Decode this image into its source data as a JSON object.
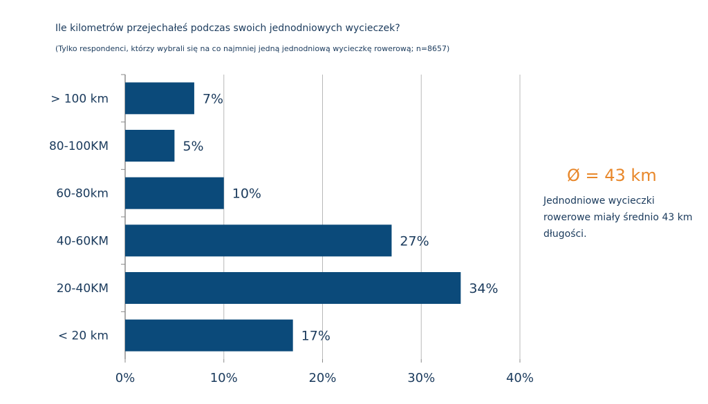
{
  "chart_data": {
    "type": "bar",
    "orientation": "horizontal",
    "title": "Ile kilometrów przejechałeś podczas swoich jednodniowych wycieczek?",
    "subtitle": "(Tylko respondenci, którzy wybrali się na co najmniej jedną jednodniową wycieczkę rowerową; n=8657)",
    "categories": [
      "> 100 km",
      "80-100KM",
      "60-80km",
      "40-60KM",
      "20-40KM",
      "< 20 km"
    ],
    "values": [
      7,
      5,
      10,
      27,
      34,
      17
    ],
    "value_labels": [
      "7%",
      "5%",
      "10%",
      "27%",
      "34%",
      "17%"
    ],
    "x_ticks": [
      "0%",
      "10%",
      "20%",
      "30%",
      "40%"
    ],
    "xlim": [
      0,
      40
    ],
    "grid": true,
    "bar_color": "#0b4a7a"
  },
  "summary": {
    "average": "Ø = 43 km",
    "note": "Jednodniowe wycieczki rowerowe miały średnio 43 km długości.",
    "average_color": "#e8872a"
  }
}
